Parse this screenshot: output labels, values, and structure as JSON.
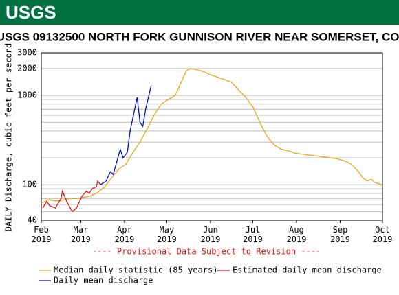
{
  "header": {
    "logo": "USGS"
  },
  "chart_data": {
    "type": "line",
    "title": "USGS 09132500 NORTH FORK GUNNISON RIVER NEAR SOMERSET, CO.",
    "y_label": "DAILY Discharge, cubic feet per second",
    "annotation": "---- Provisional Data Subject to Revision ----",
    "log_scale": true,
    "grid": true,
    "xlim": [
      0,
      242
    ],
    "xticks": [
      {
        "value": 0,
        "label": "Feb 2019"
      },
      {
        "value": 28,
        "label": "Mar 2019"
      },
      {
        "value": 59,
        "label": "Apr 2019"
      },
      {
        "value": 89,
        "label": "May 2019"
      },
      {
        "value": 120,
        "label": "Jun 2019"
      },
      {
        "value": 150,
        "label": "Jul 2019"
      },
      {
        "value": 181,
        "label": "Aug 2019"
      },
      {
        "value": 212,
        "label": "Sep 2019"
      },
      {
        "value": 242,
        "label": "Oct 2019"
      }
    ],
    "ylim": [
      40,
      3000
    ],
    "yticks": [
      40,
      100,
      1000,
      2000,
      3000
    ],
    "yminor": [
      50,
      60,
      70,
      80,
      90,
      200,
      300,
      400,
      500,
      600,
      700,
      800,
      900
    ],
    "series": [
      {
        "name": "Median daily statistic (85 years)",
        "color": "#e8a317",
        "x": [
          0,
          5,
          10,
          15,
          20,
          25,
          30,
          35,
          40,
          45,
          50,
          55,
          60,
          65,
          70,
          75,
          80,
          85,
          90,
          95,
          100,
          103,
          106,
          110,
          115,
          120,
          125,
          130,
          135,
          140,
          145,
          150,
          155,
          160,
          165,
          170,
          175,
          180,
          185,
          190,
          195,
          200,
          205,
          210,
          215,
          220,
          225,
          228,
          231,
          234,
          237,
          240,
          242
        ],
        "values": [
          62,
          68,
          66,
          67,
          70,
          70,
          72,
          75,
          82,
          95,
          120,
          150,
          170,
          230,
          300,
          420,
          600,
          800,
          900,
          1000,
          1500,
          1900,
          2000,
          1950,
          1850,
          1700,
          1600,
          1500,
          1400,
          1150,
          950,
          750,
          500,
          350,
          280,
          250,
          240,
          225,
          220,
          215,
          210,
          205,
          200,
          195,
          185,
          170,
          140,
          120,
          110,
          115,
          105,
          102,
          97
        ]
      },
      {
        "name": "Estimated daily mean discharge",
        "color": "#e01010",
        "x": [
          1,
          4,
          6,
          10,
          14,
          15,
          18,
          22,
          25,
          29,
          32,
          34,
          36,
          39,
          40,
          42
        ],
        "values": [
          55,
          65,
          58,
          55,
          70,
          85,
          65,
          50,
          55,
          75,
          85,
          80,
          90,
          95,
          110,
          100
        ]
      },
      {
        "name": "Daily mean discharge",
        "color": "#0010b0",
        "x": [
          42,
          46,
          49,
          51,
          56,
          58,
          61,
          63,
          68,
          70,
          72,
          74,
          78
        ],
        "values": [
          100,
          110,
          140,
          130,
          250,
          200,
          230,
          400,
          950,
          500,
          450,
          700,
          1300
        ]
      }
    ]
  }
}
